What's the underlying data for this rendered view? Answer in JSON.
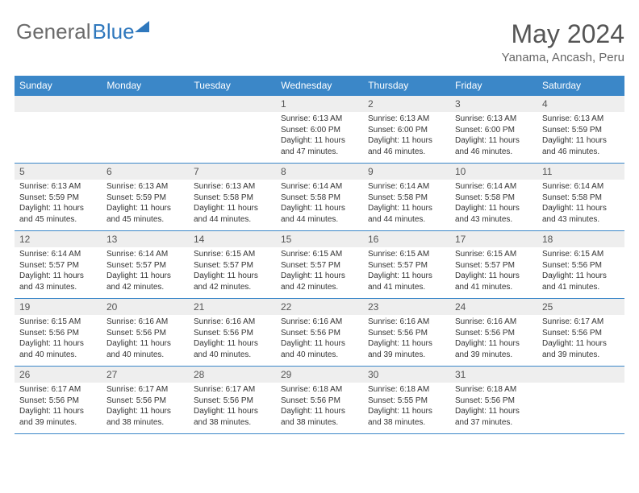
{
  "logo": {
    "part1": "General",
    "part2": "Blue"
  },
  "title": "May 2024",
  "location": "Yanama, Ancash, Peru",
  "headers": [
    "Sunday",
    "Monday",
    "Tuesday",
    "Wednesday",
    "Thursday",
    "Friday",
    "Saturday"
  ],
  "colors": {
    "header_bg": "#3b87c8",
    "header_text": "#ffffff",
    "daynum_bg": "#eeeeee",
    "border": "#3b87c8",
    "logo_g": "#6b6b6b",
    "logo_b": "#2f78bd",
    "title_color": "#555555"
  },
  "weeks": [
    [
      {
        "n": "",
        "sr": "",
        "ss": "",
        "dl": ""
      },
      {
        "n": "",
        "sr": "",
        "ss": "",
        "dl": ""
      },
      {
        "n": "",
        "sr": "",
        "ss": "",
        "dl": ""
      },
      {
        "n": "1",
        "sr": "Sunrise: 6:13 AM",
        "ss": "Sunset: 6:00 PM",
        "dl": "Daylight: 11 hours and 47 minutes."
      },
      {
        "n": "2",
        "sr": "Sunrise: 6:13 AM",
        "ss": "Sunset: 6:00 PM",
        "dl": "Daylight: 11 hours and 46 minutes."
      },
      {
        "n": "3",
        "sr": "Sunrise: 6:13 AM",
        "ss": "Sunset: 6:00 PM",
        "dl": "Daylight: 11 hours and 46 minutes."
      },
      {
        "n": "4",
        "sr": "Sunrise: 6:13 AM",
        "ss": "Sunset: 5:59 PM",
        "dl": "Daylight: 11 hours and 46 minutes."
      }
    ],
    [
      {
        "n": "5",
        "sr": "Sunrise: 6:13 AM",
        "ss": "Sunset: 5:59 PM",
        "dl": "Daylight: 11 hours and 45 minutes."
      },
      {
        "n": "6",
        "sr": "Sunrise: 6:13 AM",
        "ss": "Sunset: 5:59 PM",
        "dl": "Daylight: 11 hours and 45 minutes."
      },
      {
        "n": "7",
        "sr": "Sunrise: 6:13 AM",
        "ss": "Sunset: 5:58 PM",
        "dl": "Daylight: 11 hours and 44 minutes."
      },
      {
        "n": "8",
        "sr": "Sunrise: 6:14 AM",
        "ss": "Sunset: 5:58 PM",
        "dl": "Daylight: 11 hours and 44 minutes."
      },
      {
        "n": "9",
        "sr": "Sunrise: 6:14 AM",
        "ss": "Sunset: 5:58 PM",
        "dl": "Daylight: 11 hours and 44 minutes."
      },
      {
        "n": "10",
        "sr": "Sunrise: 6:14 AM",
        "ss": "Sunset: 5:58 PM",
        "dl": "Daylight: 11 hours and 43 minutes."
      },
      {
        "n": "11",
        "sr": "Sunrise: 6:14 AM",
        "ss": "Sunset: 5:58 PM",
        "dl": "Daylight: 11 hours and 43 minutes."
      }
    ],
    [
      {
        "n": "12",
        "sr": "Sunrise: 6:14 AM",
        "ss": "Sunset: 5:57 PM",
        "dl": "Daylight: 11 hours and 43 minutes."
      },
      {
        "n": "13",
        "sr": "Sunrise: 6:14 AM",
        "ss": "Sunset: 5:57 PM",
        "dl": "Daylight: 11 hours and 42 minutes."
      },
      {
        "n": "14",
        "sr": "Sunrise: 6:15 AM",
        "ss": "Sunset: 5:57 PM",
        "dl": "Daylight: 11 hours and 42 minutes."
      },
      {
        "n": "15",
        "sr": "Sunrise: 6:15 AM",
        "ss": "Sunset: 5:57 PM",
        "dl": "Daylight: 11 hours and 42 minutes."
      },
      {
        "n": "16",
        "sr": "Sunrise: 6:15 AM",
        "ss": "Sunset: 5:57 PM",
        "dl": "Daylight: 11 hours and 41 minutes."
      },
      {
        "n": "17",
        "sr": "Sunrise: 6:15 AM",
        "ss": "Sunset: 5:57 PM",
        "dl": "Daylight: 11 hours and 41 minutes."
      },
      {
        "n": "18",
        "sr": "Sunrise: 6:15 AM",
        "ss": "Sunset: 5:56 PM",
        "dl": "Daylight: 11 hours and 41 minutes."
      }
    ],
    [
      {
        "n": "19",
        "sr": "Sunrise: 6:15 AM",
        "ss": "Sunset: 5:56 PM",
        "dl": "Daylight: 11 hours and 40 minutes."
      },
      {
        "n": "20",
        "sr": "Sunrise: 6:16 AM",
        "ss": "Sunset: 5:56 PM",
        "dl": "Daylight: 11 hours and 40 minutes."
      },
      {
        "n": "21",
        "sr": "Sunrise: 6:16 AM",
        "ss": "Sunset: 5:56 PM",
        "dl": "Daylight: 11 hours and 40 minutes."
      },
      {
        "n": "22",
        "sr": "Sunrise: 6:16 AM",
        "ss": "Sunset: 5:56 PM",
        "dl": "Daylight: 11 hours and 40 minutes."
      },
      {
        "n": "23",
        "sr": "Sunrise: 6:16 AM",
        "ss": "Sunset: 5:56 PM",
        "dl": "Daylight: 11 hours and 39 minutes."
      },
      {
        "n": "24",
        "sr": "Sunrise: 6:16 AM",
        "ss": "Sunset: 5:56 PM",
        "dl": "Daylight: 11 hours and 39 minutes."
      },
      {
        "n": "25",
        "sr": "Sunrise: 6:17 AM",
        "ss": "Sunset: 5:56 PM",
        "dl": "Daylight: 11 hours and 39 minutes."
      }
    ],
    [
      {
        "n": "26",
        "sr": "Sunrise: 6:17 AM",
        "ss": "Sunset: 5:56 PM",
        "dl": "Daylight: 11 hours and 39 minutes."
      },
      {
        "n": "27",
        "sr": "Sunrise: 6:17 AM",
        "ss": "Sunset: 5:56 PM",
        "dl": "Daylight: 11 hours and 38 minutes."
      },
      {
        "n": "28",
        "sr": "Sunrise: 6:17 AM",
        "ss": "Sunset: 5:56 PM",
        "dl": "Daylight: 11 hours and 38 minutes."
      },
      {
        "n": "29",
        "sr": "Sunrise: 6:18 AM",
        "ss": "Sunset: 5:56 PM",
        "dl": "Daylight: 11 hours and 38 minutes."
      },
      {
        "n": "30",
        "sr": "Sunrise: 6:18 AM",
        "ss": "Sunset: 5:55 PM",
        "dl": "Daylight: 11 hours and 38 minutes."
      },
      {
        "n": "31",
        "sr": "Sunrise: 6:18 AM",
        "ss": "Sunset: 5:56 PM",
        "dl": "Daylight: 11 hours and 37 minutes."
      },
      {
        "n": "",
        "sr": "",
        "ss": "",
        "dl": ""
      }
    ]
  ]
}
